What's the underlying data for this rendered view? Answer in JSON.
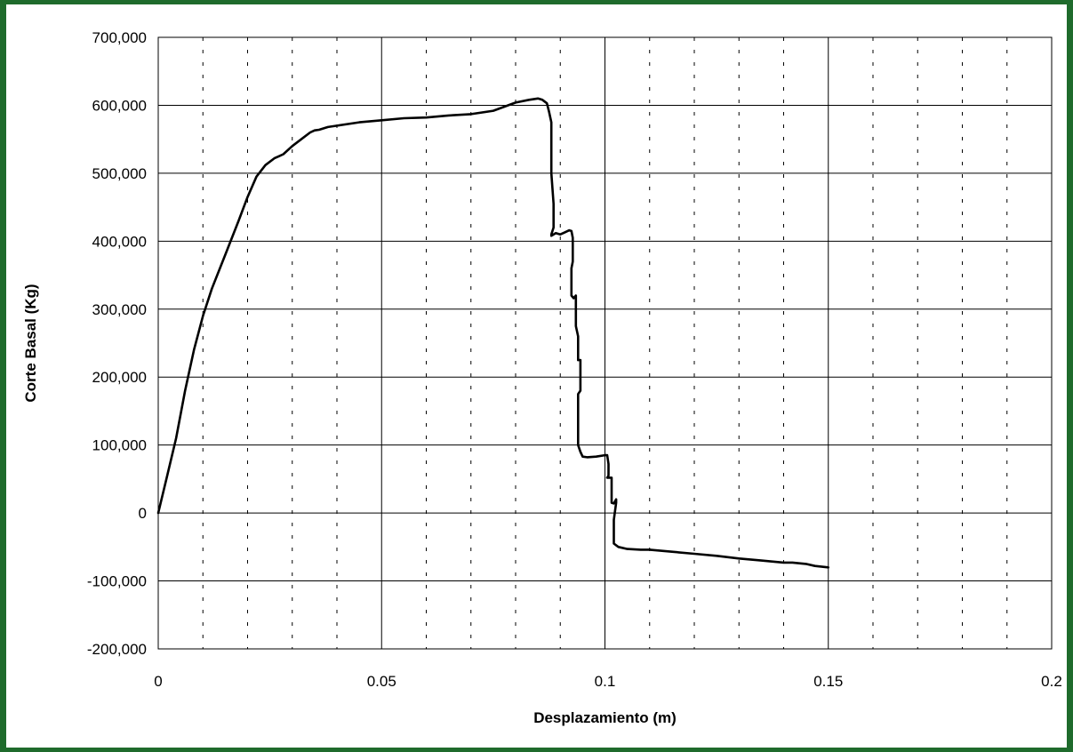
{
  "colors": {
    "background": "#1f6b2c",
    "plot": "#ffffff",
    "line": "#000000"
  },
  "chart_data": {
    "type": "line",
    "title": "",
    "xlabel": "Desplazamiento (m)",
    "ylabel": "Corte Basal (Kg)",
    "xlim": [
      0,
      0.2
    ],
    "ylim": [
      -200000,
      700000
    ],
    "x_ticks": [
      0,
      0.05,
      0.1,
      0.15,
      0.2
    ],
    "x_tick_labels": [
      "0",
      "0.05",
      "0.1",
      "0.15",
      "0.2"
    ],
    "y_ticks": [
      700000,
      600000,
      500000,
      400000,
      300000,
      200000,
      100000,
      0,
      -100000,
      -200000
    ],
    "y_tick_labels": [
      "700,000",
      "600,000",
      "500,000",
      "400,000",
      "300,000",
      "200,000",
      "100,000",
      "0",
      "-100,000",
      "-200,000"
    ],
    "grid": {
      "major": true,
      "minor_x_dashed": true
    },
    "legend": "none",
    "series": [
      {
        "x": [
          0,
          0.002,
          0.004,
          0.006,
          0.0065,
          0.008,
          0.01,
          0.012,
          0.015,
          0.018,
          0.02,
          0.022,
          0.024,
          0.026,
          0.027,
          0.028,
          0.03,
          0.032,
          0.034,
          0.035,
          0.036,
          0.038,
          0.04,
          0.045,
          0.05,
          0.055,
          0.06,
          0.065,
          0.07,
          0.075,
          0.08,
          0.083,
          0.085,
          0.086,
          0.087,
          0.0875,
          0.088,
          0.088,
          0.0885,
          0.0885,
          0.088,
          0.088,
          0.0885,
          0.089,
          0.09,
          0.091,
          0.092,
          0.0925,
          0.0928,
          0.0928,
          0.0925,
          0.0925,
          0.093,
          0.0935,
          0.0935,
          0.0935,
          0.094,
          0.094,
          0.0945,
          0.0945,
          0.094,
          0.094,
          0.0945,
          0.095,
          0.096,
          0.098,
          0.1,
          0.1005,
          0.1008,
          0.1008,
          0.1005,
          0.1015,
          0.1015,
          0.1015,
          0.102,
          0.1025,
          0.1025,
          0.102,
          0.102,
          0.103,
          0.105,
          0.108,
          0.11,
          0.115,
          0.12,
          0.125,
          0.13,
          0.135,
          0.14,
          0.142,
          0.145,
          0.147,
          0.15
        ],
        "y": [
          0,
          55000,
          110000,
          180000,
          195000,
          240000,
          290000,
          330000,
          380000,
          430000,
          465000,
          495000,
          512000,
          522000,
          525000,
          528000,
          540000,
          550000,
          560000,
          563000,
          564000,
          568000,
          570000,
          575000,
          578000,
          581000,
          582000,
          585000,
          587000,
          592000,
          604000,
          608000,
          610000,
          608000,
          603000,
          590000,
          575000,
          500000,
          455000,
          420000,
          410000,
          408000,
          410000,
          412000,
          410000,
          413000,
          416000,
          415000,
          405000,
          370000,
          360000,
          320000,
          316000,
          320000,
          318000,
          275000,
          260000,
          225000,
          225000,
          180000,
          175000,
          100000,
          90000,
          83000,
          82000,
          83000,
          85000,
          85000,
          72000,
          55000,
          52000,
          52000,
          48000,
          15000,
          14000,
          20000,
          15000,
          -10000,
          -45000,
          -50000,
          -53000,
          -54000,
          -54000,
          -57000,
          -60000,
          -63000,
          -67000,
          -70000,
          -73000,
          -73000,
          -75000,
          -78000,
          -80000
        ]
      }
    ]
  }
}
